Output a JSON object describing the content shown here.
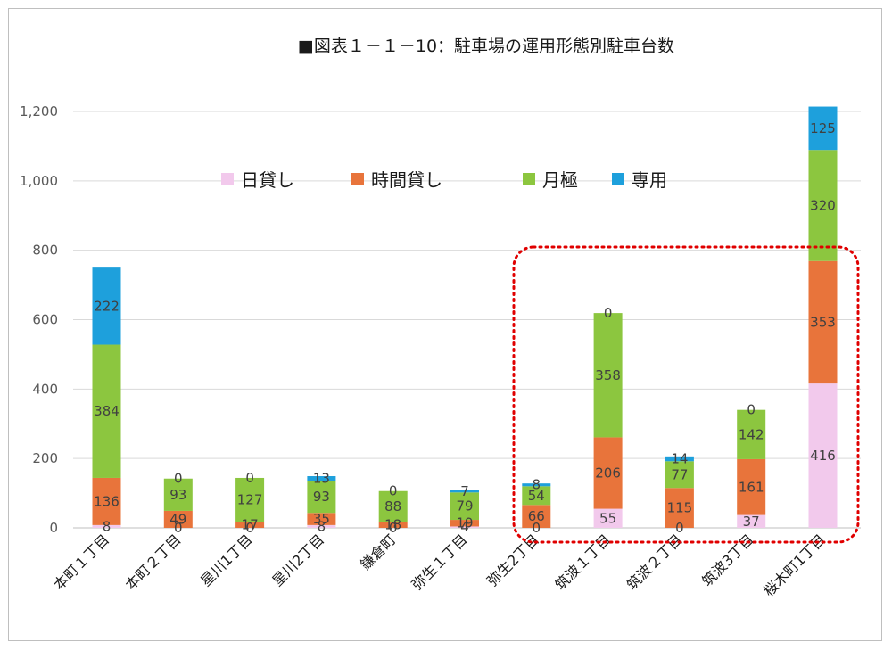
{
  "chart_data": {
    "type": "bar",
    "stacked": true,
    "title": "■図表１－１－10：駐車場の運用形態別駐車台数",
    "xlabel": "",
    "ylabel": "",
    "ylim": [
      0,
      1200
    ],
    "yticks": [
      0,
      200,
      400,
      600,
      800,
      1000,
      1200
    ],
    "ytick_labels": [
      "0",
      "200",
      "400",
      "600",
      "800",
      "1,000",
      "1,200"
    ],
    "grid": true,
    "legend_position": "top-center",
    "categories": [
      "本町１丁目",
      "本町２丁目",
      "星川1丁目",
      "星川2丁目",
      "鎌倉町",
      "弥生１丁目",
      "弥生2丁目",
      "筑波１丁目",
      "筑波２丁目",
      "筑波3丁目",
      "桜木町1丁目"
    ],
    "series": [
      {
        "name": "日貸し",
        "color": "#f2c9ec",
        "values": [
          8,
          0,
          0,
          8,
          0,
          4,
          0,
          55,
          0,
          37,
          416
        ]
      },
      {
        "name": "時間貸し",
        "color": "#e8743b",
        "values": [
          136,
          49,
          17,
          35,
          18,
          19,
          66,
          206,
          115,
          161,
          353
        ]
      },
      {
        "name": "月極",
        "color": "#8cc63f",
        "values": [
          384,
          93,
          127,
          93,
          88,
          79,
          54,
          358,
          77,
          142,
          320
        ]
      },
      {
        "name": "専用",
        "color": "#1ea0dc",
        "values": [
          222,
          0,
          0,
          13,
          0,
          7,
          8,
          0,
          14,
          0,
          125
        ]
      }
    ],
    "highlight": {
      "from_category": "弥生2丁目",
      "to_category": "桜木町1丁目",
      "style": "red dotted rounded box"
    }
  }
}
